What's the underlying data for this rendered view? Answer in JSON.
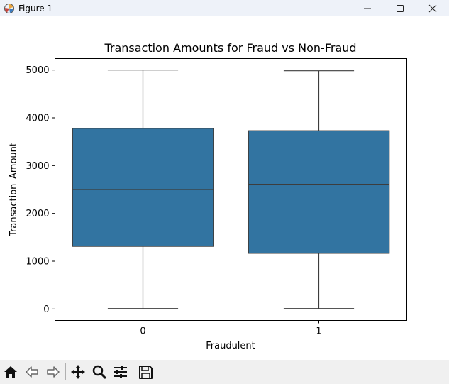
{
  "window": {
    "title": "Figure 1",
    "controls": [
      "minimize-icon",
      "maximize-icon",
      "close-icon"
    ]
  },
  "toolbar": {
    "buttons": [
      "home-icon",
      "back-icon",
      "forward-icon",
      "pan-icon",
      "zoom-icon",
      "configure-subplots-icon",
      "save-icon"
    ]
  },
  "chart_data": {
    "type": "box",
    "title": "Transaction Amounts for Fraud vs Non-Fraud",
    "xlabel": "Fraudulent",
    "ylabel": "Transaction_Amount",
    "categories": [
      "0",
      "1"
    ],
    "ylim": [
      -240,
      5240
    ],
    "yticks": [
      0,
      1000,
      2000,
      3000,
      4000,
      5000
    ],
    "color": "#3274a1",
    "edge_color": "#3d3d3d",
    "grid": false,
    "boxes": [
      {
        "category": "0",
        "whisker_low": 10,
        "q1": 1310,
        "median": 2500,
        "q3": 3780,
        "whisker_high": 5000
      },
      {
        "category": "1",
        "whisker_low": 10,
        "q1": 1165,
        "median": 2610,
        "q3": 3730,
        "whisker_high": 4985
      }
    ]
  }
}
